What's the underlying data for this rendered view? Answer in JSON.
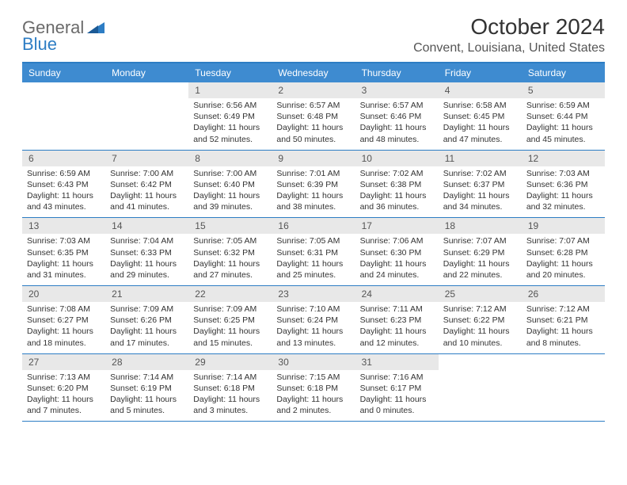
{
  "logo": {
    "line1": "General",
    "line2": "Blue"
  },
  "title": "October 2024",
  "location": "Convent, Louisiana, United States",
  "colors": {
    "header_bar": "#3e8bd0",
    "accent_border": "#2d7dc4",
    "daynum_bg": "#e8e8e8",
    "text": "#333333",
    "logo_gray": "#6a6a6a",
    "logo_blue": "#2d7dc4",
    "background": "#ffffff"
  },
  "fonts": {
    "title_size": 28,
    "location_size": 16,
    "weekday_size": 12,
    "daynum_size": 12,
    "body_size": 10.5
  },
  "weekdays": [
    "Sunday",
    "Monday",
    "Tuesday",
    "Wednesday",
    "Thursday",
    "Friday",
    "Saturday"
  ],
  "weeks": [
    [
      {
        "n": "",
        "sr": "",
        "ss": "",
        "dl": ""
      },
      {
        "n": "",
        "sr": "",
        "ss": "",
        "dl": ""
      },
      {
        "n": "1",
        "sr": "6:56 AM",
        "ss": "6:49 PM",
        "dl": "11 hours and 52 minutes."
      },
      {
        "n": "2",
        "sr": "6:57 AM",
        "ss": "6:48 PM",
        "dl": "11 hours and 50 minutes."
      },
      {
        "n": "3",
        "sr": "6:57 AM",
        "ss": "6:46 PM",
        "dl": "11 hours and 48 minutes."
      },
      {
        "n": "4",
        "sr": "6:58 AM",
        "ss": "6:45 PM",
        "dl": "11 hours and 47 minutes."
      },
      {
        "n": "5",
        "sr": "6:59 AM",
        "ss": "6:44 PM",
        "dl": "11 hours and 45 minutes."
      }
    ],
    [
      {
        "n": "6",
        "sr": "6:59 AM",
        "ss": "6:43 PM",
        "dl": "11 hours and 43 minutes."
      },
      {
        "n": "7",
        "sr": "7:00 AM",
        "ss": "6:42 PM",
        "dl": "11 hours and 41 minutes."
      },
      {
        "n": "8",
        "sr": "7:00 AM",
        "ss": "6:40 PM",
        "dl": "11 hours and 39 minutes."
      },
      {
        "n": "9",
        "sr": "7:01 AM",
        "ss": "6:39 PM",
        "dl": "11 hours and 38 minutes."
      },
      {
        "n": "10",
        "sr": "7:02 AM",
        "ss": "6:38 PM",
        "dl": "11 hours and 36 minutes."
      },
      {
        "n": "11",
        "sr": "7:02 AM",
        "ss": "6:37 PM",
        "dl": "11 hours and 34 minutes."
      },
      {
        "n": "12",
        "sr": "7:03 AM",
        "ss": "6:36 PM",
        "dl": "11 hours and 32 minutes."
      }
    ],
    [
      {
        "n": "13",
        "sr": "7:03 AM",
        "ss": "6:35 PM",
        "dl": "11 hours and 31 minutes."
      },
      {
        "n": "14",
        "sr": "7:04 AM",
        "ss": "6:33 PM",
        "dl": "11 hours and 29 minutes."
      },
      {
        "n": "15",
        "sr": "7:05 AM",
        "ss": "6:32 PM",
        "dl": "11 hours and 27 minutes."
      },
      {
        "n": "16",
        "sr": "7:05 AM",
        "ss": "6:31 PM",
        "dl": "11 hours and 25 minutes."
      },
      {
        "n": "17",
        "sr": "7:06 AM",
        "ss": "6:30 PM",
        "dl": "11 hours and 24 minutes."
      },
      {
        "n": "18",
        "sr": "7:07 AM",
        "ss": "6:29 PM",
        "dl": "11 hours and 22 minutes."
      },
      {
        "n": "19",
        "sr": "7:07 AM",
        "ss": "6:28 PM",
        "dl": "11 hours and 20 minutes."
      }
    ],
    [
      {
        "n": "20",
        "sr": "7:08 AM",
        "ss": "6:27 PM",
        "dl": "11 hours and 18 minutes."
      },
      {
        "n": "21",
        "sr": "7:09 AM",
        "ss": "6:26 PM",
        "dl": "11 hours and 17 minutes."
      },
      {
        "n": "22",
        "sr": "7:09 AM",
        "ss": "6:25 PM",
        "dl": "11 hours and 15 minutes."
      },
      {
        "n": "23",
        "sr": "7:10 AM",
        "ss": "6:24 PM",
        "dl": "11 hours and 13 minutes."
      },
      {
        "n": "24",
        "sr": "7:11 AM",
        "ss": "6:23 PM",
        "dl": "11 hours and 12 minutes."
      },
      {
        "n": "25",
        "sr": "7:12 AM",
        "ss": "6:22 PM",
        "dl": "11 hours and 10 minutes."
      },
      {
        "n": "26",
        "sr": "7:12 AM",
        "ss": "6:21 PM",
        "dl": "11 hours and 8 minutes."
      }
    ],
    [
      {
        "n": "27",
        "sr": "7:13 AM",
        "ss": "6:20 PM",
        "dl": "11 hours and 7 minutes."
      },
      {
        "n": "28",
        "sr": "7:14 AM",
        "ss": "6:19 PM",
        "dl": "11 hours and 5 minutes."
      },
      {
        "n": "29",
        "sr": "7:14 AM",
        "ss": "6:18 PM",
        "dl": "11 hours and 3 minutes."
      },
      {
        "n": "30",
        "sr": "7:15 AM",
        "ss": "6:18 PM",
        "dl": "11 hours and 2 minutes."
      },
      {
        "n": "31",
        "sr": "7:16 AM",
        "ss": "6:17 PM",
        "dl": "11 hours and 0 minutes."
      },
      {
        "n": "",
        "sr": "",
        "ss": "",
        "dl": ""
      },
      {
        "n": "",
        "sr": "",
        "ss": "",
        "dl": ""
      }
    ]
  ],
  "labels": {
    "sunrise": "Sunrise:",
    "sunset": "Sunset:",
    "daylight": "Daylight:"
  }
}
